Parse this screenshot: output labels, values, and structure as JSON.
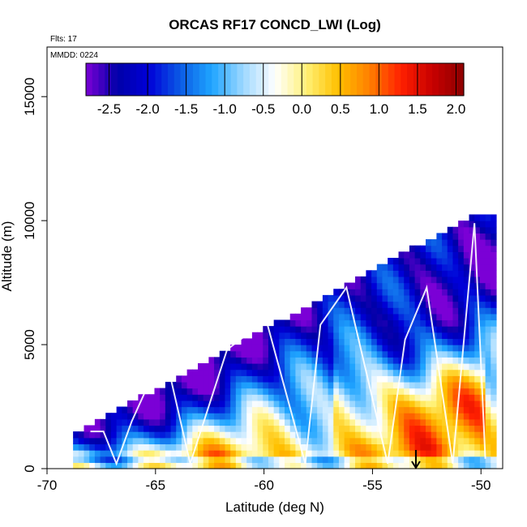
{
  "chart_data": {
    "type": "heatmap",
    "title": "ORCAS RF17 CONCD_LWI (Log)",
    "subtitle_flights": "Flts: 17",
    "subtitle_date": "MMDD: 0224",
    "xlabel": "Latitude (deg N)",
    "ylabel": "Altitude (m)",
    "xlim": [
      -70,
      -49
    ],
    "ylim": [
      0,
      17000
    ],
    "x_ticks": [
      "-70",
      "-65",
      "-60",
      "-55",
      "-50"
    ],
    "y_ticks": [
      "0",
      "5000",
      "10000",
      "15000"
    ],
    "colorbar": {
      "range": [
        -2.8,
        2.1
      ],
      "ticks": [
        "-2.5",
        "-2.0",
        "-1.5",
        "-1.0",
        "-0.5",
        "0.0",
        "0.5",
        "1.0",
        "1.5",
        "2.0"
      ],
      "colors": [
        "#7B00D6",
        "#0000A8",
        "#0000D8",
        "#0B5BE5",
        "#1FA5FF",
        "#9ED8FF",
        "#FFFFFF",
        "#FFF176",
        "#FFC000",
        "#FF8000",
        "#FF2000",
        "#C80000",
        "#8C0000"
      ]
    },
    "grid": false,
    "legend": "colorbar top",
    "arrow_marker_lat": -53
  },
  "icons": {
    "arrow": "down-arrow-icon"
  }
}
